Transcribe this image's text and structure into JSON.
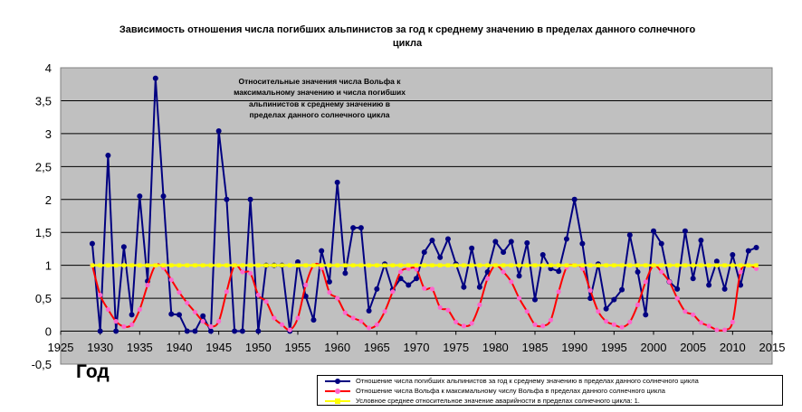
{
  "chart_data": {
    "type": "line",
    "title": "Зависимость отношения числа погибших альпинистов за год к среднему значению в пределах данного солнечного цикла",
    "xlabel": "Год",
    "ylabel": "",
    "xlim": [
      1925,
      2015
    ],
    "ylim": [
      -0.5,
      4
    ],
    "x_ticks": [
      "1925",
      "1930",
      "1935",
      "1940",
      "1945",
      "1950",
      "1955",
      "1960",
      "1965",
      "1970",
      "1975",
      "1980",
      "1985",
      "1990",
      "1995",
      "2000",
      "2005",
      "2010",
      "2015"
    ],
    "y_ticks": [
      "-0,5",
      "0",
      "0,5",
      "1",
      "1,5",
      "2",
      "2,5",
      "3",
      "3,5",
      "4"
    ],
    "annotation": "Относительные значения числа Вольфа к максимальному значению и числа погибших альпинистов к среднему значению в пределах данного солнечного цикла",
    "grid": "horizontal",
    "legend_position": "bottom-right",
    "colors": {
      "plot_background": "#c0c0c0"
    },
    "series": [
      {
        "name": "Отношение числа погибших альпинистов за год к среднему значению в пределах данного солнечного цикла",
        "color": "#000080",
        "x": [
          1929,
          1930,
          1931,
          1932,
          1933,
          1934,
          1935,
          1936,
          1937,
          1938,
          1939,
          1940,
          1941,
          1942,
          1943,
          1944,
          1945,
          1946,
          1947,
          1948,
          1949,
          1950,
          1951,
          1952,
          1953,
          1954,
          1955,
          1956,
          1957,
          1958,
          1959,
          1960,
          1961,
          1962,
          1963,
          1964,
          1965,
          1966,
          1967,
          1968,
          1969,
          1970,
          1971,
          1972,
          1973,
          1974,
          1975,
          1976,
          1977,
          1978,
          1979,
          1980,
          1981,
          1982,
          1983,
          1984,
          1985,
          1986,
          1987,
          1988,
          1989,
          1990,
          1991,
          1992,
          1993,
          1994,
          1995,
          1996,
          1997,
          1998,
          1999,
          2000,
          2001,
          2002,
          2003,
          2004,
          2005,
          2006,
          2007,
          2008,
          2009,
          2010,
          2011,
          2012,
          2013
        ],
        "y": [
          1.33,
          0,
          2.67,
          0,
          1.28,
          0.25,
          2.05,
          0.76,
          3.84,
          2.05,
          0.26,
          0.25,
          0,
          0,
          0.23,
          0,
          3.04,
          2.0,
          0,
          0,
          2.0,
          0,
          1.0,
          1.0,
          1.0,
          0,
          1.05,
          0.53,
          0.17,
          1.22,
          0.75,
          2.26,
          0.88,
          1.57,
          1.57,
          0.31,
          0.64,
          1.02,
          0.63,
          0.8,
          0.7,
          0.8,
          1.2,
          1.38,
          1.12,
          1.4,
          1.02,
          0.67,
          1.26,
          0.67,
          0.9,
          1.36,
          1.2,
          1.36,
          0.84,
          1.34,
          0.48,
          1.16,
          0.95,
          0.91,
          1.4,
          2.0,
          1.33,
          0.5,
          1.02,
          0.34,
          0.48,
          0.63,
          1.46,
          0.9,
          0.25,
          1.52,
          1.33,
          0.75,
          0.64,
          1.52,
          0.8,
          1.38,
          0.7,
          1.06,
          0.64,
          1.16,
          0.7,
          1.22,
          1.27
        ]
      },
      {
        "name": "Отношение числа Вольфа к максимальному числу Вольфа в пределах данного солнечного цикла",
        "color": "#ff0000",
        "x": [
          1929,
          1930,
          1931,
          1932,
          1933,
          1934,
          1935,
          1936,
          1937,
          1938,
          1939,
          1940,
          1941,
          1942,
          1943,
          1944,
          1945,
          1946,
          1947,
          1948,
          1949,
          1950,
          1951,
          1952,
          1953,
          1954,
          1955,
          1956,
          1957,
          1958,
          1959,
          1960,
          1961,
          1962,
          1963,
          1964,
          1965,
          1966,
          1967,
          1968,
          1969,
          1970,
          1971,
          1972,
          1973,
          1974,
          1975,
          1976,
          1977,
          1978,
          1979,
          1980,
          1981,
          1982,
          1983,
          1984,
          1985,
          1986,
          1987,
          1988,
          1989,
          1990,
          1991,
          1992,
          1993,
          1994,
          1995,
          1996,
          1997,
          1998,
          1999,
          2000,
          2001,
          2002,
          2003,
          2004,
          2005,
          2006,
          2007,
          2008,
          2009,
          2010,
          2011,
          2012,
          2013
        ],
        "y": [
          1.0,
          0.55,
          0.33,
          0.15,
          0.07,
          0.1,
          0.33,
          0.7,
          1.0,
          0.96,
          0.78,
          0.59,
          0.43,
          0.29,
          0.15,
          0.07,
          0.15,
          0.6,
          1.0,
          0.9,
          0.88,
          0.55,
          0.45,
          0.2,
          0.1,
          0.02,
          0.2,
          0.7,
          1.0,
          0.96,
          0.59,
          0.5,
          0.28,
          0.2,
          0.15,
          0.05,
          0.1,
          0.3,
          0.6,
          0.9,
          0.95,
          0.94,
          0.65,
          0.64,
          0.36,
          0.32,
          0.14,
          0.08,
          0.12,
          0.4,
          0.8,
          1.0,
          0.9,
          0.75,
          0.5,
          0.3,
          0.1,
          0.08,
          0.17,
          0.6,
          0.97,
          1.0,
          0.95,
          0.62,
          0.3,
          0.15,
          0.1,
          0.06,
          0.14,
          0.4,
          0.75,
          1.0,
          0.9,
          0.75,
          0.5,
          0.3,
          0.25,
          0.13,
          0.08,
          0.02,
          0.02,
          0.14,
          0.9,
          1.0,
          0.95
        ]
      },
      {
        "name": "Условное среднее относительное значение аварийности в пределах солнечного цикла: 1.",
        "color": "#ffff00",
        "x": [
          1929,
          1930,
          1931,
          1932,
          1933,
          1934,
          1935,
          1936,
          1937,
          1938,
          1939,
          1940,
          1941,
          1942,
          1943,
          1944,
          1945,
          1946,
          1947,
          1948,
          1949,
          1950,
          1951,
          1952,
          1953,
          1954,
          1955,
          1956,
          1957,
          1958,
          1959,
          1960,
          1961,
          1962,
          1963,
          1964,
          1965,
          1966,
          1967,
          1968,
          1969,
          1970,
          1971,
          1972,
          1973,
          1974,
          1975,
          1976,
          1977,
          1978,
          1979,
          1980,
          1981,
          1982,
          1983,
          1984,
          1985,
          1986,
          1987,
          1988,
          1989,
          1990,
          1991,
          1992,
          1993,
          1994,
          1995,
          1996,
          1997,
          1998,
          1999,
          2000,
          2001,
          2002,
          2003,
          2004,
          2005,
          2006,
          2007,
          2008,
          2009,
          2010,
          2011,
          2012,
          2013
        ],
        "y": [
          1,
          1,
          1,
          1,
          1,
          1,
          1,
          1,
          1,
          1,
          1,
          1,
          1,
          1,
          1,
          1,
          1,
          1,
          1,
          1,
          1,
          1,
          1,
          1,
          1,
          1,
          1,
          1,
          1,
          1,
          1,
          1,
          1,
          1,
          1,
          1,
          1,
          1,
          1,
          1,
          1,
          1,
          1,
          1,
          1,
          1,
          1,
          1,
          1,
          1,
          1,
          1,
          1,
          1,
          1,
          1,
          1,
          1,
          1,
          1,
          1,
          1,
          1,
          1,
          1,
          1,
          1,
          1,
          1,
          1,
          1,
          1,
          1,
          1,
          1,
          1,
          1,
          1,
          1,
          1,
          1,
          1,
          1,
          1,
          1
        ]
      }
    ]
  }
}
